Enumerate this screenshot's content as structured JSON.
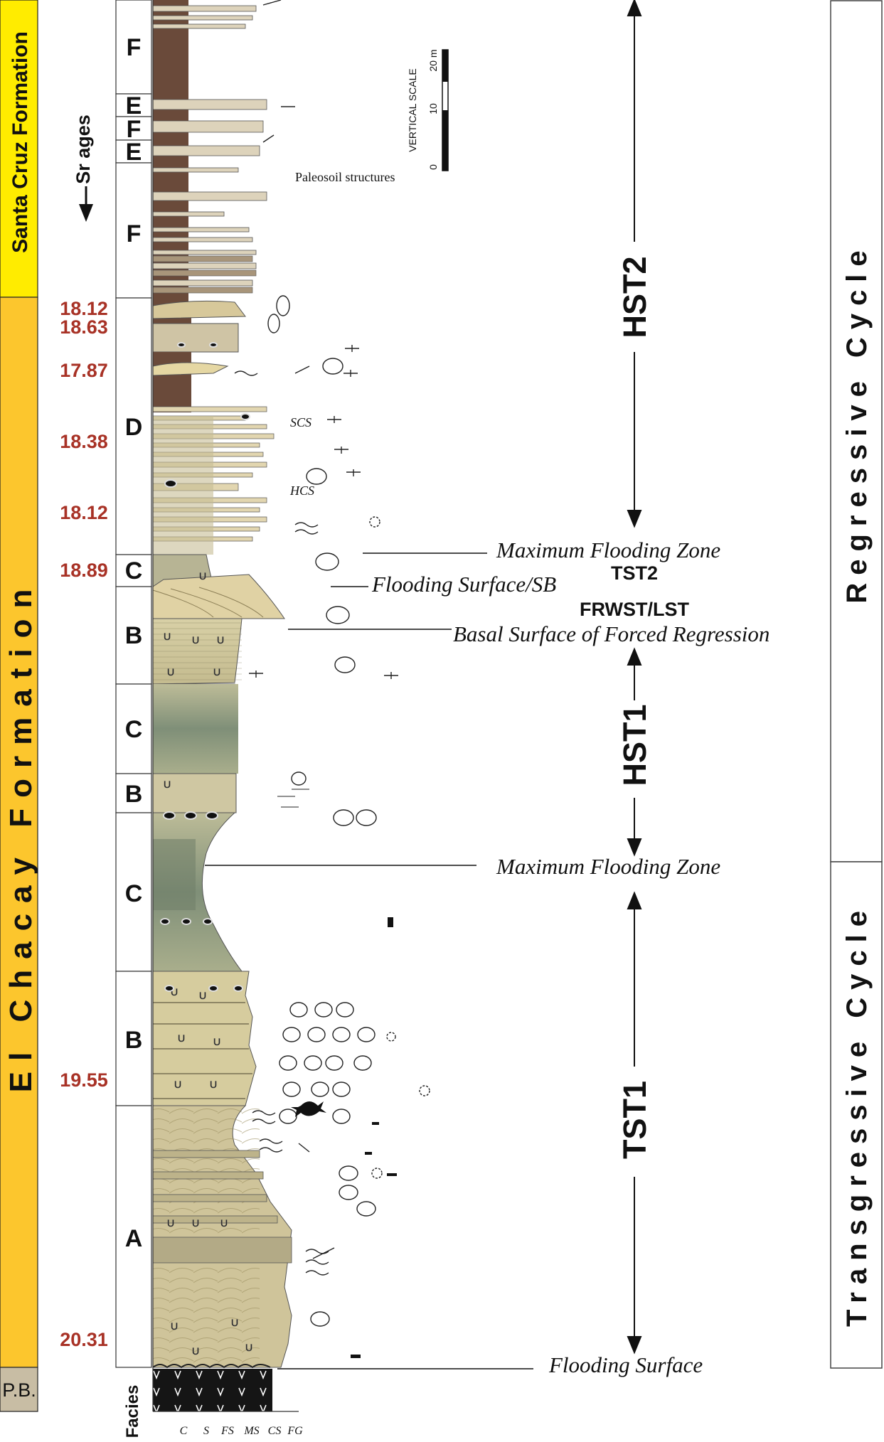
{
  "formations": {
    "santa_cruz": "Santa Cruz Formation",
    "el_chacay": "El Chacay Formation",
    "pb": "P.B."
  },
  "sr_ages_label": "Sr ages",
  "sr_ages": [
    "18.12",
    "18.63",
    "17.87",
    "18.38",
    "18.12",
    "18.89",
    "19.55",
    "20.31"
  ],
  "facies_column": [
    "F",
    "E",
    "F",
    "E",
    "F",
    "D",
    "C",
    "B",
    "C",
    "B",
    "C",
    "B",
    "A"
  ],
  "facies_axis_label": "Facies",
  "grain_size_ticks": [
    "C",
    "S",
    "FS",
    "MS",
    "CS",
    "FG"
  ],
  "vertical_scale": {
    "title": "VERTICAL SCALE",
    "unit_label": "20 m",
    "ticks": [
      "0",
      "10"
    ]
  },
  "annotations": {
    "paleosoil": "Paleosoil structures",
    "scs": "SCS",
    "hcs": "HCS"
  },
  "surfaces": {
    "mfz_upper": "Maximum Flooding Zone",
    "flooding_sb": "Flooding Surface/SB",
    "basal_forced_regression": "Basal Surface of Forced Regression",
    "mfz_lower": "Maximum Flooding Zone",
    "flooding_surface": "Flooding Surface"
  },
  "systems_tracts": {
    "hst2": "HST2",
    "tst2": "TST2",
    "frwst_lst": "FRWST/LST",
    "hst1": "HST1",
    "tst1": "TST1"
  },
  "cycles": {
    "regressive": "Regressive Cycle",
    "transgressive": "Transgressive Cycle"
  },
  "colors": {
    "yellow": "#ffec00",
    "orange": "#fcc62d",
    "pb_gray": "#c8bda4",
    "brown": "#6a4a3a",
    "sand": "#e8ddb5",
    "khaki": "#cfc79c",
    "green": "#9aa88a",
    "dark_green": "#6f7d68",
    "age_red": "#a83226"
  }
}
